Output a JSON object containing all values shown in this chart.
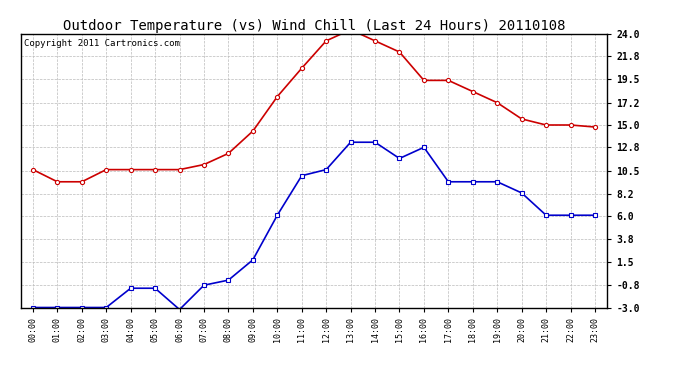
{
  "title": "Outdoor Temperature (vs) Wind Chill (Last 24 Hours) 20110108",
  "copyright": "Copyright 2011 Cartronics.com",
  "hours": [
    "00:00",
    "01:00",
    "02:00",
    "03:00",
    "04:00",
    "05:00",
    "06:00",
    "07:00",
    "08:00",
    "09:00",
    "10:00",
    "11:00",
    "12:00",
    "13:00",
    "14:00",
    "15:00",
    "16:00",
    "17:00",
    "18:00",
    "19:00",
    "20:00",
    "21:00",
    "22:00",
    "23:00"
  ],
  "temp": [
    10.6,
    9.4,
    9.4,
    10.6,
    10.6,
    10.6,
    10.6,
    11.1,
    12.2,
    14.4,
    17.8,
    20.6,
    23.3,
    24.4,
    23.3,
    22.2,
    19.4,
    19.4,
    18.3,
    17.2,
    15.6,
    15.0,
    15.0,
    14.8
  ],
  "wind_chill": [
    -3.0,
    -3.0,
    -3.0,
    -3.0,
    -1.1,
    -1.1,
    -3.2,
    -0.8,
    -0.3,
    1.7,
    6.1,
    10.0,
    10.6,
    13.3,
    13.3,
    11.7,
    12.8,
    9.4,
    9.4,
    9.4,
    8.3,
    6.1,
    6.1,
    6.1
  ],
  "temp_color": "#cc0000",
  "wind_chill_color": "#0000cc",
  "background_color": "#ffffff",
  "plot_bg_color": "#ffffff",
  "grid_color": "#bbbbbb",
  "yticks": [
    -3.0,
    -0.8,
    1.5,
    3.8,
    6.0,
    8.2,
    10.5,
    12.8,
    15.0,
    17.2,
    19.5,
    21.8,
    24.0
  ],
  "ymin": -3.0,
  "ymax": 24.0,
  "title_fontsize": 10,
  "copyright_fontsize": 6.5,
  "markersize": 3,
  "linewidth": 1.2
}
